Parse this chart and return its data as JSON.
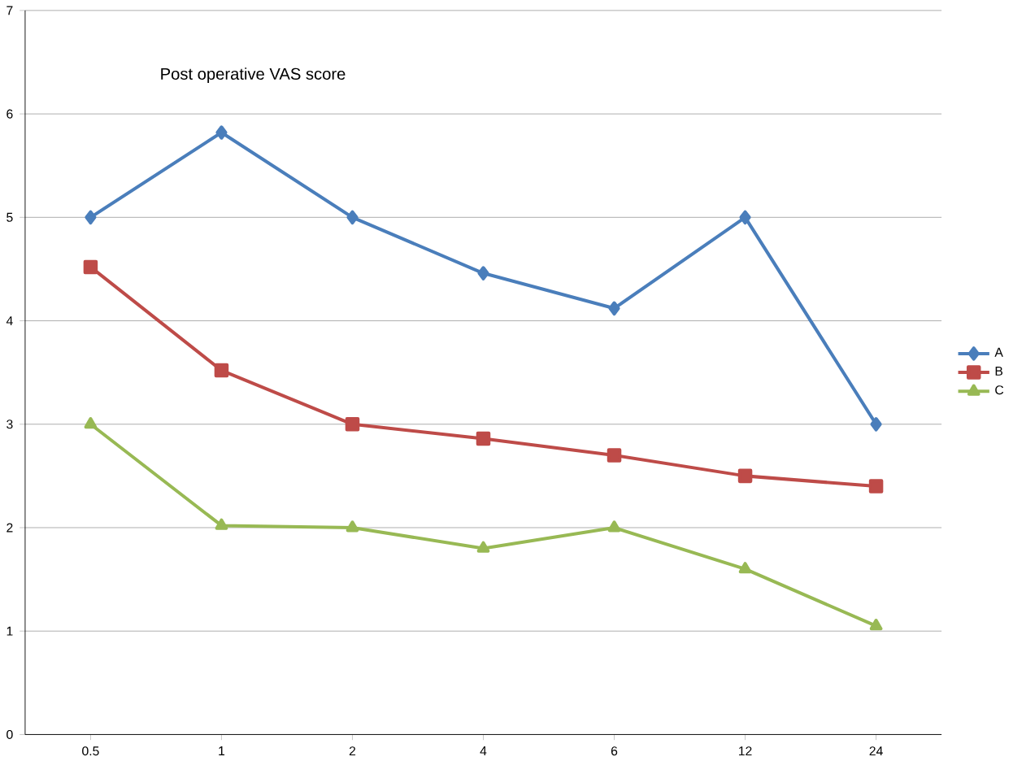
{
  "chart_data": {
    "type": "line",
    "title": "Post operative VAS score",
    "categories": [
      "0.5",
      "1",
      "2",
      "4",
      "6",
      "12",
      "24"
    ],
    "series": [
      {
        "name": "A",
        "color": "#4a7ebb",
        "marker": "diamond",
        "values": [
          5.0,
          5.82,
          5.0,
          4.46,
          4.12,
          5.0,
          3.0
        ]
      },
      {
        "name": "B",
        "color": "#be4b48",
        "marker": "square",
        "values": [
          4.52,
          3.52,
          3.0,
          2.86,
          2.7,
          2.5,
          2.4
        ]
      },
      {
        "name": "C",
        "color": "#98b954",
        "marker": "triangle",
        "values": [
          3.0,
          2.02,
          2.0,
          1.8,
          2.0,
          1.6,
          1.05
        ]
      }
    ],
    "ylim": [
      0,
      7
    ],
    "yticks": [
      0,
      1,
      2,
      3,
      4,
      5,
      6,
      7
    ],
    "grid": "y",
    "legend": "right"
  }
}
